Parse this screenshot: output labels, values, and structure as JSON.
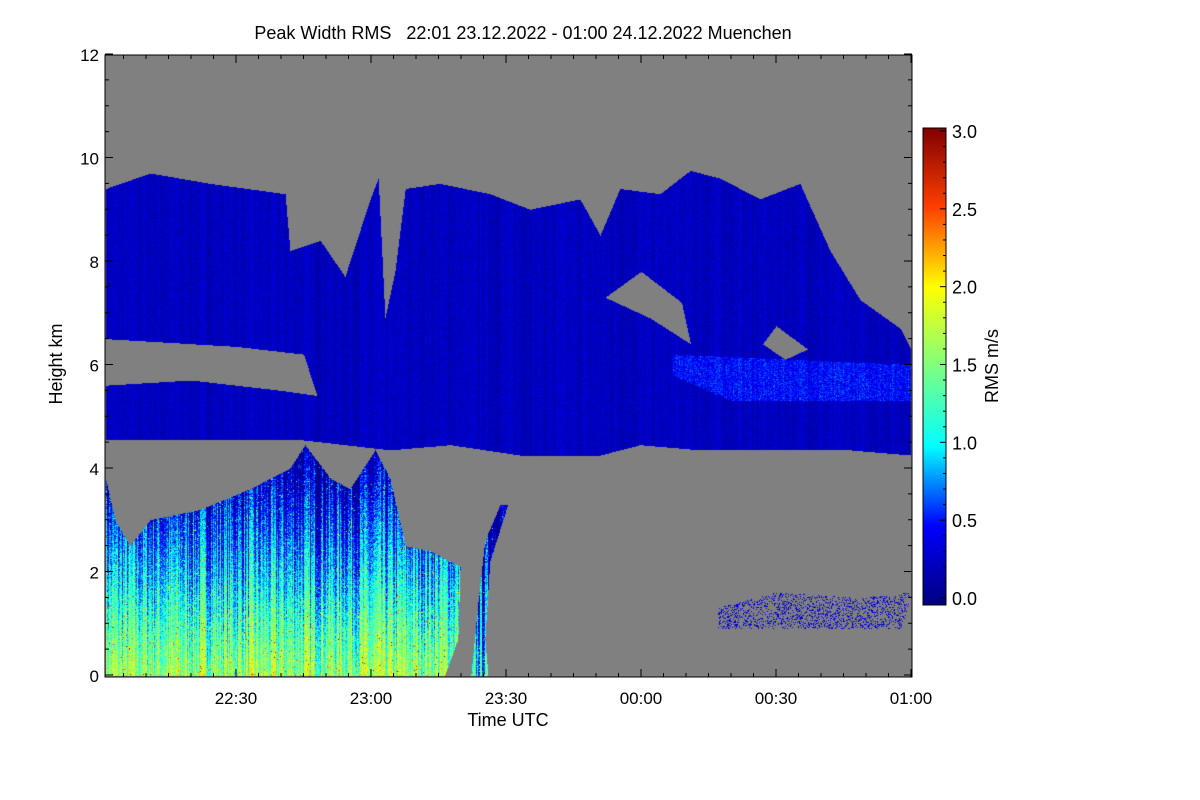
{
  "chart_data": {
    "type": "heatmap",
    "title": "Peak Width RMS   22:01 23.12.2022 - 01:00 24.12.2022 Muenchen",
    "xlabel": "Time UTC",
    "ylabel": "Height km",
    "colorbar_label": "RMS m/s",
    "x_unit": "minutes after 22:00 UTC",
    "xlim": [
      1,
      180
    ],
    "ylim": [
      0,
      12
    ],
    "x_ticks": [
      {
        "value": 30,
        "label": "22:30"
      },
      {
        "value": 60,
        "label": "23:00"
      },
      {
        "value": 90,
        "label": "23:30"
      },
      {
        "value": 120,
        "label": "00:00"
      },
      {
        "value": 150,
        "label": "00:30"
      },
      {
        "value": 180,
        "label": "01:00"
      }
    ],
    "y_ticks": [
      {
        "value": 0,
        "label": "0"
      },
      {
        "value": 2,
        "label": "2"
      },
      {
        "value": 4,
        "label": "4"
      },
      {
        "value": 6,
        "label": "6"
      },
      {
        "value": 8,
        "label": "8"
      },
      {
        "value": 10,
        "label": "10"
      },
      {
        "value": 12,
        "label": "12"
      }
    ],
    "colorbar_range": [
      0,
      3
    ],
    "colorbar_ticks": [
      {
        "value": 0,
        "label": "0.0"
      },
      {
        "value": 0.5,
        "label": "0.5"
      },
      {
        "value": 1,
        "label": "1.0"
      },
      {
        "value": 1.5,
        "label": "1.5"
      },
      {
        "value": 2,
        "label": "2.0"
      },
      {
        "value": 2.5,
        "label": "2.5"
      },
      {
        "value": 3,
        "label": "3.0"
      }
    ],
    "no_data_color": "#808080",
    "colormap": [
      "#00007f",
      "#0000ff",
      "#00ffff",
      "#7fff7f",
      "#ffff00",
      "#ff3f00",
      "#7f0000"
    ],
    "regions": [
      {
        "name": "mid-level cloud layer",
        "rms_base": 0.25,
        "polygon": [
          [
            1,
            9.4
          ],
          [
            10.9,
            9.7
          ],
          [
            24.2,
            9.5
          ],
          [
            40.9,
            9.3
          ],
          [
            42,
            8.2
          ],
          [
            48.7,
            8.4
          ],
          [
            54.2,
            7.7
          ],
          [
            59.8,
            9.2
          ],
          [
            61.6,
            9.6
          ],
          [
            63.1,
            6.9
          ],
          [
            65.3,
            7.8
          ],
          [
            67.6,
            9.4
          ],
          [
            75.3,
            9.5
          ],
          [
            86.4,
            9.3
          ],
          [
            95.3,
            9.0
          ],
          [
            106.4,
            9.2
          ],
          [
            110.9,
            8.5
          ],
          [
            115.3,
            9.4
          ],
          [
            124.2,
            9.3
          ],
          [
            130.9,
            9.75
          ],
          [
            137.6,
            9.6
          ],
          [
            146.4,
            9.2
          ],
          [
            155.3,
            9.5
          ],
          [
            162,
            8.2
          ],
          [
            168.7,
            7.25
          ],
          [
            177.6,
            6.7
          ],
          [
            180,
            6.3
          ],
          [
            180,
            4.25
          ],
          [
            166.4,
            4.35
          ],
          [
            133.1,
            4.35
          ],
          [
            119.8,
            4.45
          ],
          [
            110.9,
            4.25
          ],
          [
            93.1,
            4.25
          ],
          [
            77.6,
            4.45
          ],
          [
            64.2,
            4.35
          ],
          [
            44.2,
            4.55
          ],
          [
            1,
            4.55
          ]
        ]
      },
      {
        "name": "gap",
        "rms_base": null,
        "polygon": [
          [
            1,
            6.5
          ],
          [
            30,
            6.35
          ],
          [
            45,
            6.2
          ],
          [
            48,
            5.4
          ],
          [
            40,
            5.5
          ],
          [
            20,
            5.7
          ],
          [
            1,
            5.6
          ]
        ]
      },
      {
        "name": "gap",
        "rms_base": null,
        "polygon": [
          [
            112,
            7.3
          ],
          [
            122,
            6.9
          ],
          [
            131,
            6.4
          ],
          [
            129,
            7.2
          ],
          [
            120,
            7.8
          ]
        ]
      },
      {
        "name": "gap",
        "rms_base": null,
        "polygon": [
          [
            147,
            6.4
          ],
          [
            152,
            6.1
          ],
          [
            157,
            6.3
          ],
          [
            150,
            6.75
          ]
        ]
      },
      {
        "name": "bright band",
        "rms_base": 0.6,
        "polygon": [
          [
            127,
            6.2
          ],
          [
            180,
            6.0
          ],
          [
            180,
            5.3
          ],
          [
            140,
            5.3
          ],
          [
            127,
            5.8
          ]
        ]
      },
      {
        "name": "precipitation",
        "rms_base": 1.6,
        "rms_height_gradient": -0.35,
        "polygon": [
          [
            1,
            3.8
          ],
          [
            3.1,
            3.0
          ],
          [
            6.4,
            2.5
          ],
          [
            10.9,
            3.0
          ],
          [
            22,
            3.2
          ],
          [
            33.1,
            3.6
          ],
          [
            42,
            4.0
          ],
          [
            45.3,
            4.45
          ],
          [
            51,
            3.8
          ],
          [
            55.3,
            3.6
          ],
          [
            60.9,
            4.35
          ],
          [
            64.2,
            3.8
          ],
          [
            67.6,
            2.5
          ],
          [
            73.1,
            2.4
          ],
          [
            79.8,
            2.1
          ],
          [
            79.3,
            0.7
          ],
          [
            76.4,
            0
          ],
          [
            1,
            0
          ]
        ]
      },
      {
        "name": "precipitation strip",
        "rms_base": 1.0,
        "rms_height_gradient": -0.25,
        "polygon": [
          [
            82.2,
            0
          ],
          [
            83.8,
            1.45
          ],
          [
            85.3,
            2.6
          ],
          [
            88.7,
            3.3
          ],
          [
            90.4,
            3.3
          ],
          [
            86.4,
            2.2
          ],
          [
            85.3,
            0.7
          ],
          [
            86,
            0
          ]
        ]
      },
      {
        "name": "sparse low echoes",
        "rms_base": 0.35,
        "sparse": true,
        "polygon": [
          [
            137,
            0.9
          ],
          [
            150,
            0.9
          ],
          [
            178,
            0.9
          ],
          [
            180,
            1.6
          ],
          [
            168,
            1.5
          ],
          [
            150,
            1.6
          ],
          [
            137,
            1.3
          ]
        ]
      }
    ]
  }
}
